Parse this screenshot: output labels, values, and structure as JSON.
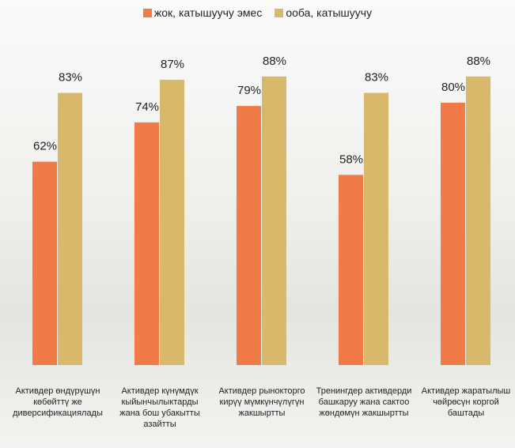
{
  "chart_data": {
    "type": "bar",
    "categories": [
      "Активдер өндүрүшүн көбөйттү же диверсификациялады",
      "Активдер күнүмдүк кыйынчылыктарды жана бош убакытты азайтты",
      "Активдер рынокторго кирүү мүмкүнчүлүгүн жакшыртты",
      "Тренингдер активдерди башкаруу жана сактоо жөндөмүн жакшыртты",
      "Активдер жаратылыш чөйрөсүн коргой баштады"
    ],
    "series": [
      {
        "name": "жок, катышуучу эмес",
        "color": "#f07b47",
        "values": [
          62,
          74,
          79,
          58,
          80
        ],
        "value_labels": [
          "62%",
          "74%",
          "79%",
          "58%",
          "80%"
        ]
      },
      {
        "name": "ооба, катышуучу",
        "color": "#d8b86a",
        "values": [
          83,
          87,
          88,
          83,
          88
        ],
        "value_labels": [
          "83%",
          "87%",
          "88%",
          "83%",
          "88%"
        ]
      }
    ],
    "ylim": [
      0,
      100
    ]
  }
}
